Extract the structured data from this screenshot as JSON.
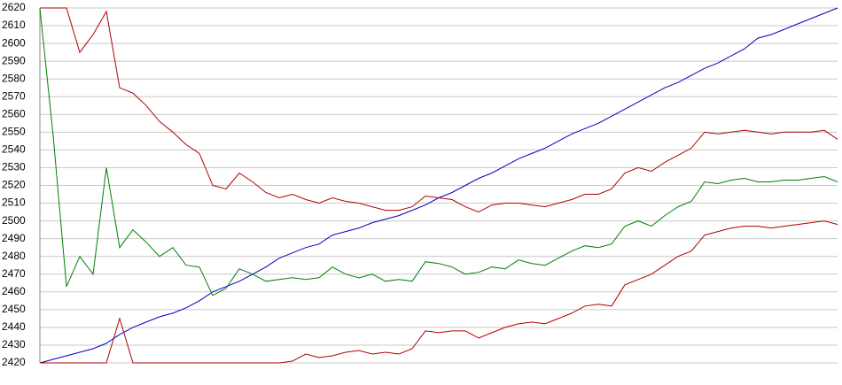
{
  "chart_data": {
    "type": "line",
    "ylim": [
      2420,
      2620
    ],
    "yticks": [
      2420,
      2430,
      2440,
      2450,
      2460,
      2470,
      2480,
      2490,
      2500,
      2510,
      2520,
      2530,
      2540,
      2550,
      2560,
      2570,
      2580,
      2590,
      2600,
      2610,
      2620
    ],
    "grid": true,
    "series": [
      {
        "color": "#0000c0",
        "values": [
          2420,
          2422,
          2424,
          2426,
          2428,
          2431,
          2436,
          2440,
          2443,
          2446,
          2448,
          2451,
          2455,
          2460,
          2463,
          2466,
          2470,
          2474,
          2479,
          2482,
          2485,
          2487,
          2492,
          2494,
          2496,
          2499,
          2501,
          2503,
          2506,
          2509,
          2513,
          2516,
          2520,
          2524,
          2527,
          2531,
          2535,
          2538,
          2541,
          2545,
          2549,
          2552,
          2555,
          2559,
          2563,
          2567,
          2571,
          2575,
          2578,
          2582,
          2586,
          2589,
          2593,
          2597,
          2603,
          2605,
          2608,
          2611,
          2614,
          2617,
          2620
        ]
      },
      {
        "color": "#b00000",
        "values": [
          2620,
          2620,
          2620,
          2595,
          2605,
          2618,
          2575,
          2572,
          2565,
          2556,
          2550,
          2543,
          2538,
          2520,
          2518,
          2527,
          2522,
          2516,
          2513,
          2515,
          2512,
          2510,
          2513,
          2511,
          2510,
          2508,
          2506,
          2506,
          2508,
          2514,
          2513,
          2512,
          2508,
          2505,
          2509,
          2510,
          2510,
          2509,
          2508,
          2510,
          2512,
          2515,
          2515,
          2518,
          2527,
          2530,
          2528,
          2533,
          2537,
          2541,
          2550,
          2549,
          2550,
          2551,
          2550,
          2549,
          2550,
          2550,
          2550,
          2551,
          2546
        ]
      },
      {
        "color": "#008000",
        "values": [
          2620,
          2548,
          2463,
          2480,
          2470,
          2530,
          2485,
          2495,
          2488,
          2480,
          2485,
          2475,
          2474,
          2458,
          2462,
          2473,
          2470,
          2466,
          2467,
          2468,
          2467,
          2468,
          2474,
          2470,
          2468,
          2470,
          2466,
          2467,
          2466,
          2477,
          2476,
          2474,
          2470,
          2471,
          2474,
          2473,
          2478,
          2476,
          2475,
          2479,
          2483,
          2486,
          2485,
          2487,
          2497,
          2500,
          2497,
          2503,
          2508,
          2511,
          2522,
          2521,
          2523,
          2524,
          2522,
          2522,
          2523,
          2523,
          2524,
          2525,
          2522
        ]
      },
      {
        "color": "#b00000",
        "values": [
          2420,
          2420,
          2420,
          2420,
          2420,
          2420,
          2445,
          2420,
          2420,
          2420,
          2420,
          2420,
          2420,
          2420,
          2420,
          2420,
          2420,
          2420,
          2420,
          2421,
          2425,
          2423,
          2424,
          2426,
          2427,
          2425,
          2426,
          2425,
          2428,
          2438,
          2437,
          2438,
          2438,
          2434,
          2437,
          2440,
          2442,
          2443,
          2442,
          2445,
          2448,
          2452,
          2453,
          2452,
          2464,
          2467,
          2470,
          2475,
          2480,
          2483,
          2492,
          2494,
          2496,
          2497,
          2497,
          2496,
          2497,
          2498,
          2499,
          2500,
          2498
        ]
      }
    ]
  }
}
